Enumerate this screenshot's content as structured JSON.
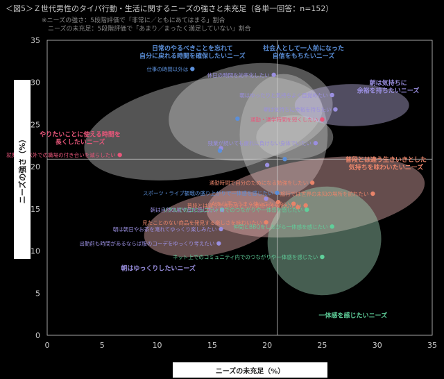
{
  "title": "＜図5＞Ｚ世代男性のタイパ行動・生活に関するニーズの強さと未充足（各単一回答：n=152）",
  "notes": [
    "※ニーズの強さ：5段階評価で「非常に／ともにあてはまる」割合",
    "　ニーズの未充足：5段階評価で「あまり／まったく満足していない」割合"
  ],
  "colors": {
    "background": "#000000",
    "axis": "#cccccc",
    "blue": "#5b8fd9",
    "purple": "#9a8fe0",
    "pink": "#e8567a",
    "salmon": "#e8846a",
    "green": "#5fcf9a",
    "ellipse_gray": "#c8c8c8",
    "ellipse_pink": "#f0b8b8",
    "ellipse_green": "#a8e0c0",
    "ellipse_purple": "#c0b8e8"
  },
  "chart_data": {
    "type": "scatter",
    "title": "＜図5＞Ｚ世代男性のタイパ行動・生活に関するニーズの強さと未充足（各単一回答：n=152）",
    "xlabel": "ニーズの未充足（%）",
    "ylabel": "ニーズの強さ（%）",
    "xlim": [
      0,
      35
    ],
    "ylim": [
      0,
      35
    ],
    "xticks": [
      0,
      5,
      10,
      15,
      20,
      25,
      30,
      35
    ],
    "yticks": [
      0,
      5,
      10,
      15,
      20,
      25,
      30,
      35
    ],
    "reference_lines": {
      "x": 20.9,
      "y": 20.9
    },
    "grid": false,
    "points": [
      {
        "x": 13.2,
        "y": 31.6,
        "label": "仕事の時間以外は",
        "color": "blue"
      },
      {
        "x": 20.6,
        "y": 30.9,
        "label": "休日の時間を効率化したい",
        "color": "purple"
      },
      {
        "x": 25.9,
        "y": 28.5,
        "label": "朝はゆったりと気持ちよく目覚めたい",
        "color": "purple"
      },
      {
        "x": 26.2,
        "y": 26.8,
        "label": "朝は気持ちに余裕を持ちたい",
        "color": "purple"
      },
      {
        "x": 25.0,
        "y": 25.6,
        "label": "通勤・通学時間を短くしたい",
        "color": "pink"
      },
      {
        "x": 24.4,
        "y": 22.8,
        "label": "残業が続いても疲れに負けない身体でいたい",
        "color": "purple"
      },
      {
        "x": 6.6,
        "y": 21.4,
        "label": "就業時間以外での職場の付き合いを減らしたい",
        "color": "pink"
      },
      {
        "x": 17.3,
        "y": 25.7,
        "label": "",
        "color": "blue"
      },
      {
        "x": 15.8,
        "y": 22.2,
        "label": "",
        "color": "purple"
      },
      {
        "x": 15.7,
        "y": 21.9,
        "label": "",
        "color": "blue"
      },
      {
        "x": 20.0,
        "y": 20.2,
        "label": "",
        "color": "purple"
      },
      {
        "x": 21.6,
        "y": 20.9,
        "label": "",
        "color": "blue"
      },
      {
        "x": 20.9,
        "y": 16.9,
        "label": "スポーツ・ライブ観戦の盛り上がりで一体感を感じたい",
        "color": "blue"
      },
      {
        "x": 19.9,
        "y": 16.2,
        "label": "",
        "color": "purple"
      },
      {
        "x": 21.0,
        "y": 15.8,
        "label": "",
        "color": "salmon"
      },
      {
        "x": 22.4,
        "y": 15.6,
        "label": "AIを仕事でうまく使いこなしたい",
        "color": "salmon"
      },
      {
        "x": 22.8,
        "y": 15.2,
        "label": "",
        "color": "salmon"
      },
      {
        "x": 23.5,
        "y": 15.4,
        "label": "普段とは違う生きいきとした気持ちを味わいたい",
        "color": "salmon"
      },
      {
        "x": 29.6,
        "y": 16.8,
        "label": "旅行では世界の未知の場所を訪れたい",
        "color": "salmon"
      },
      {
        "x": 24.1,
        "y": 18.1,
        "label": "通勤時間で自分のためになる勉強をしたい",
        "color": "salmon"
      },
      {
        "x": 15.9,
        "y": 14.9,
        "label": "朝は自然の風や音を感じたい",
        "color": "purple"
      },
      {
        "x": 15.8,
        "y": 12.6,
        "label": "朝は朝日やお茶を淹れてゆっくり楽しみたい",
        "color": "purple"
      },
      {
        "x": 15.6,
        "y": 10.9,
        "label": "出勤前も時間があるならば服のコーデをゆっくり考えたい",
        "color": "purple"
      },
      {
        "x": 19.9,
        "y": 13.4,
        "label": "見たことのない商品を発見する楽しさを味わいたい",
        "color": "salmon"
      },
      {
        "x": 23.6,
        "y": 14.9,
        "label": "リアルでのコミュニティ内でのつながりや一体感を感じたい",
        "color": "green"
      },
      {
        "x": 25.9,
        "y": 12.9,
        "label": "仲間とBBQをしながら一体感を感じたい",
        "color": "green"
      },
      {
        "x": 25.0,
        "y": 9.3,
        "label": "ネット上でのコミュニティ内でのつながりや一体感を感じたい",
        "color": "green"
      }
    ],
    "ellipses": [
      {
        "cx": 14.2,
        "cy": 24.6,
        "rx": 11.0,
        "ry": 5.7,
        "angle": -11,
        "color": "ellipse_gray"
      },
      {
        "cx": 18.5,
        "cy": 26.5,
        "rx": 7.5,
        "ry": 5.7,
        "angle": -8,
        "color": "ellipse_gray"
      },
      {
        "cx": 21.5,
        "cy": 23.8,
        "rx": 4.0,
        "ry": 7.2,
        "angle": 0,
        "color": "ellipse_gray"
      },
      {
        "cx": 22.5,
        "cy": 23.5,
        "rx": 3.5,
        "ry": 2.6,
        "angle": 0,
        "color": "ellipse_gray"
      },
      {
        "cx": 27.7,
        "cy": 27.3,
        "rx": 5.2,
        "ry": 2.5,
        "angle": 0,
        "color": "ellipse_purple"
      },
      {
        "cx": 24.4,
        "cy": 16.4,
        "rx": 10.0,
        "ry": 4.5,
        "angle": -8,
        "color": "ellipse_pink"
      },
      {
        "cx": 15.0,
        "cy": 13.2,
        "rx": 6.3,
        "ry": 3.6,
        "angle": -12,
        "color": "ellipse_pink"
      },
      {
        "cx": 25.2,
        "cy": 11.2,
        "rx": 5.2,
        "ry": 6.4,
        "angle": -20,
        "color": "ellipse_green"
      }
    ],
    "group_labels": [
      {
        "lines": [
          "日常のやるべきことを忘れて",
          "自分に戻れる時間を確保したいニーズ"
        ],
        "x": 13.2,
        "y": 33.8,
        "color": "blue"
      },
      {
        "lines": [
          "社会人として一人前になった",
          "自信をもちたいニーズ"
        ],
        "x": 23.3,
        "y": 33.8,
        "color": "blue"
      },
      {
        "lines": [
          "朝は気持ちに",
          "余裕を持ちたいニーズ"
        ],
        "x": 31.0,
        "y": 29.7,
        "color": "purple"
      },
      {
        "lines": [
          "やりたいことに使える時間を",
          "長くしたいニーズ"
        ],
        "x": 3.0,
        "y": 23.6,
        "color": "pink"
      },
      {
        "lines": [
          "普段とは違う生きいきとした",
          "気持ちを味わいたいニーズ"
        ],
        "x": 30.8,
        "y": 20.6,
        "color": "salmon"
      },
      {
        "lines": [
          "朝はゆっくりしたいニーズ"
        ],
        "x": 10.1,
        "y": 7.7,
        "color": "purple"
      },
      {
        "lines": [
          "一体感を感じたいニーズ"
        ],
        "x": 27.8,
        "y": 2.1,
        "color": "green"
      }
    ]
  }
}
